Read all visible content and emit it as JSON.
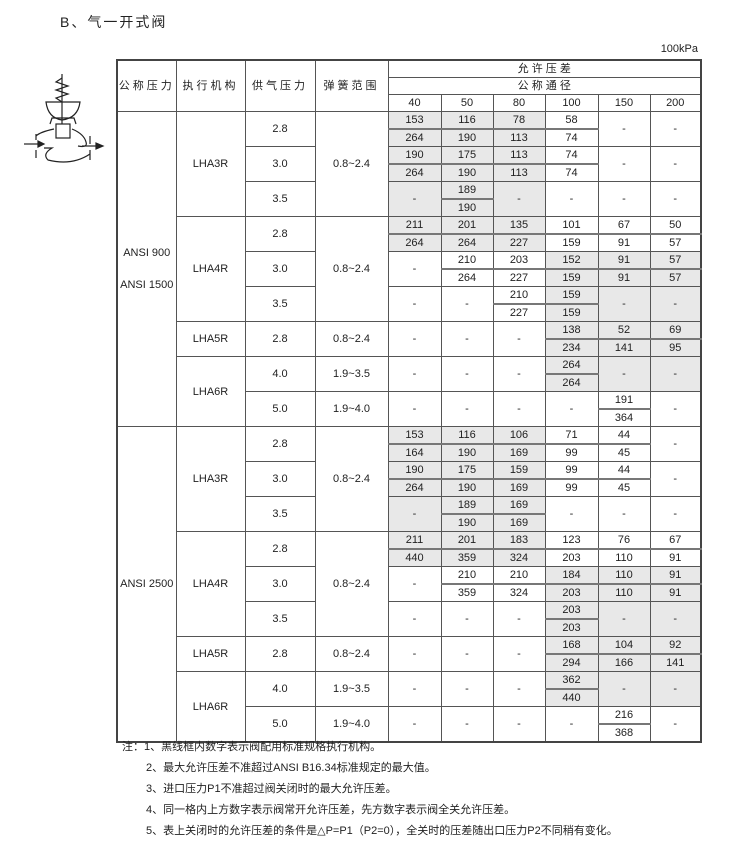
{
  "title": "B、气一开式阀",
  "unit": "100kPa",
  "header": {
    "nominal_pressure": "公称压力",
    "actuator": "执行机构",
    "supply_pressure": "供气压力",
    "spring_range": "弹簧范围",
    "allowable_dp": "允 许 压 差",
    "nominal_diameter": "公 称 通 径",
    "sizes": [
      "40",
      "50",
      "80",
      "100",
      "150",
      "200"
    ]
  },
  "shade_color": "#e8e8e8",
  "groups": [
    {
      "pressure": [
        "ANSI 900",
        "ANSI 1500"
      ],
      "actuators": [
        {
          "name": "LHA3R",
          "spring": "0.8~2.4",
          "rows": [
            {
              "supply": "2.8",
              "cells": [
                [
                  "153",
                  "264"
                ],
                [
                  "116",
                  "190"
                ],
                [
                  "78",
                  "113"
                ],
                [
                  "58",
                  "74"
                ],
                "-",
                "-"
              ],
              "shaded": [
                1,
                1,
                1,
                0,
                0,
                0
              ]
            },
            {
              "supply": "3.0",
              "cells": [
                [
                  "190",
                  "264"
                ],
                [
                  "175",
                  "190"
                ],
                [
                  "113",
                  "113"
                ],
                [
                  "74",
                  "74"
                ],
                "-",
                "-"
              ],
              "shaded": [
                1,
                1,
                1,
                0,
                0,
                0
              ]
            },
            {
              "supply": "3.5",
              "cells": [
                "-",
                [
                  "189",
                  "190"
                ],
                "-",
                "-",
                "-",
                "-"
              ],
              "shaded": [
                1,
                1,
                1,
                0,
                0,
                0
              ]
            }
          ]
        },
        {
          "name": "LHA4R",
          "spring": "0.8~2.4",
          "rows": [
            {
              "supply": "2.8",
              "cells": [
                [
                  "211",
                  "264"
                ],
                [
                  "201",
                  "264"
                ],
                [
                  "135",
                  "227"
                ],
                [
                  "101",
                  "159"
                ],
                [
                  "67",
                  "91"
                ],
                [
                  "50",
                  "57"
                ]
              ],
              "shaded": [
                1,
                1,
                1,
                0,
                0,
                0
              ]
            },
            {
              "supply": "3.0",
              "cells": [
                "-",
                [
                  "210",
                  "264"
                ],
                [
                  "203",
                  "227"
                ],
                [
                  "152",
                  "159"
                ],
                [
                  "91",
                  "91"
                ],
                [
                  "57",
                  "57"
                ]
              ],
              "shaded": [
                0,
                0,
                0,
                1,
                1,
                1
              ]
            },
            {
              "supply": "3.5",
              "cells": [
                "-",
                "-",
                [
                  "210",
                  "227"
                ],
                [
                  "159",
                  "159"
                ],
                "-",
                "-"
              ],
              "shaded": [
                0,
                0,
                0,
                1,
                1,
                1
              ]
            }
          ]
        },
        {
          "name": "LHA5R",
          "spring": "0.8~2.4",
          "rows": [
            {
              "supply": "2.8",
              "cells": [
                "-",
                "-",
                "-",
                [
                  "138",
                  "234"
                ],
                [
                  "52",
                  "141"
                ],
                [
                  "69",
                  "95"
                ]
              ],
              "shaded": [
                0,
                0,
                0,
                1,
                1,
                1
              ]
            }
          ]
        },
        {
          "name": "LHA6R",
          "rows": [
            {
              "supply": "4.0",
              "spring": "1.9~3.5",
              "cells": [
                "-",
                "-",
                "-",
                [
                  "264",
                  "264"
                ],
                "-",
                "-"
              ],
              "shaded": [
                0,
                0,
                0,
                1,
                1,
                1
              ]
            },
            {
              "supply": "5.0",
              "spring": "1.9~4.0",
              "cells": [
                "-",
                "-",
                "-",
                "-",
                [
                  "191",
                  "364"
                ],
                "-"
              ],
              "shaded": [
                0,
                0,
                0,
                0,
                0,
                0
              ]
            }
          ]
        }
      ]
    },
    {
      "pressure": [
        "ANSI 2500"
      ],
      "actuators": [
        {
          "name": "LHA3R",
          "spring": "0.8~2.4",
          "rows": [
            {
              "supply": "2.8",
              "cells": [
                [
                  "153",
                  "164"
                ],
                [
                  "116",
                  "190"
                ],
                [
                  "106",
                  "169"
                ],
                [
                  "71",
                  "99"
                ],
                [
                  "44",
                  "45"
                ],
                "-"
              ],
              "shaded": [
                1,
                1,
                1,
                0,
                0,
                0
              ]
            },
            {
              "supply": "3.0",
              "cells": [
                [
                  "190",
                  "264"
                ],
                [
                  "175",
                  "190"
                ],
                [
                  "159",
                  "169"
                ],
                [
                  "99",
                  "99"
                ],
                [
                  "44",
                  "45"
                ],
                "-"
              ],
              "shaded": [
                1,
                1,
                1,
                0,
                0,
                0
              ]
            },
            {
              "supply": "3.5",
              "cells": [
                "-",
                [
                  "189",
                  "190"
                ],
                [
                  "169",
                  "169"
                ],
                "-",
                "-",
                "-"
              ],
              "shaded": [
                1,
                1,
                1,
                0,
                0,
                0
              ]
            }
          ]
        },
        {
          "name": "LHA4R",
          "spring": "0.8~2.4",
          "rows": [
            {
              "supply": "2.8",
              "cells": [
                [
                  "211",
                  "440"
                ],
                [
                  "201",
                  "359"
                ],
                [
                  "183",
                  "324"
                ],
                [
                  "123",
                  "203"
                ],
                [
                  "76",
                  "110"
                ],
                [
                  "67",
                  "91"
                ]
              ],
              "shaded": [
                1,
                1,
                1,
                0,
                0,
                0
              ]
            },
            {
              "supply": "3.0",
              "cells": [
                "-",
                [
                  "210",
                  "359"
                ],
                [
                  "210",
                  "324"
                ],
                [
                  "184",
                  "203"
                ],
                [
                  "110",
                  "110"
                ],
                [
                  "91",
                  "91"
                ]
              ],
              "shaded": [
                0,
                0,
                0,
                1,
                1,
                1
              ]
            },
            {
              "supply": "3.5",
              "cells": [
                "-",
                "-",
                "-",
                [
                  "203",
                  "203"
                ],
                "-",
                "-"
              ],
              "shaded": [
                0,
                0,
                0,
                1,
                1,
                1
              ]
            }
          ]
        },
        {
          "name": "LHA5R",
          "spring": "0.8~2.4",
          "rows": [
            {
              "supply": "2.8",
              "cells": [
                "-",
                "-",
                "-",
                [
                  "168",
                  "294"
                ],
                [
                  "104",
                  "166"
                ],
                [
                  "92",
                  "141"
                ]
              ],
              "shaded": [
                0,
                0,
                0,
                1,
                1,
                1
              ]
            }
          ]
        },
        {
          "name": "LHA6R",
          "rows": [
            {
              "supply": "4.0",
              "spring": "1.9~3.5",
              "cells": [
                "-",
                "-",
                "-",
                [
                  "362",
                  "440"
                ],
                "-",
                "-"
              ],
              "shaded": [
                0,
                0,
                0,
                1,
                1,
                1
              ]
            },
            {
              "supply": "5.0",
              "spring": "1.9~4.0",
              "cells": [
                "-",
                "-",
                "-",
                "-",
                [
                  "216",
                  "368"
                ],
                "-"
              ],
              "shaded": [
                0,
                0,
                0,
                0,
                0,
                0
              ]
            }
          ]
        }
      ]
    }
  ],
  "notes": [
    "注：1、黑线框内数字表示阀配用标准规格执行机构。",
    "2、最大允许压差不准超过ANSI B16.34标准规定的最大值。",
    "3、进口压力P1不准超过阀关闭时的最大允许压差。",
    "4、同一格内上方数字表示阀常开允许压差，先方数字表示阀全关允许压差。",
    "5、表上关闭时的允许压差的条件是△P=P1（P2=0），全关时的压差随出口压力P2不同稍有变化。"
  ]
}
